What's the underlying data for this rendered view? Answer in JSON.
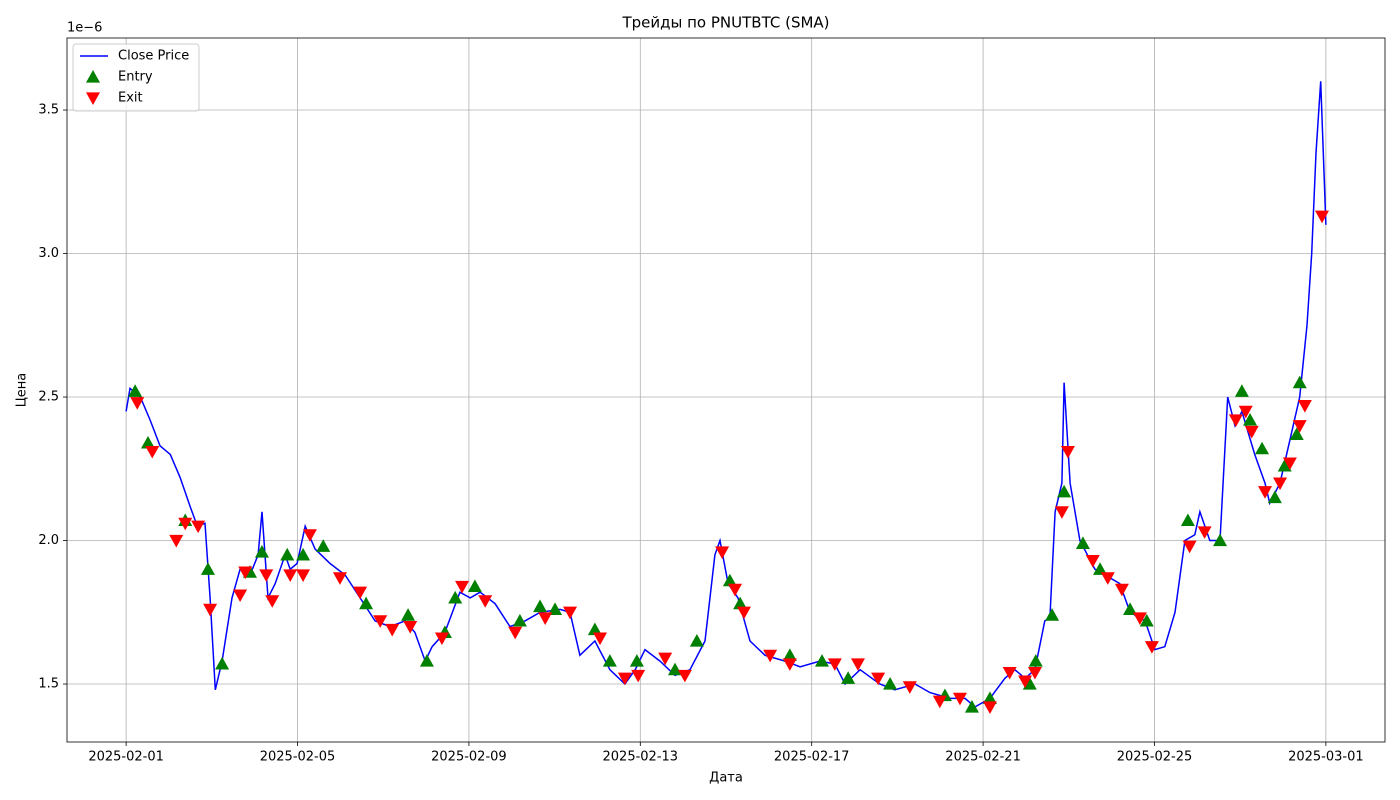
{
  "chart_data": {
    "type": "line",
    "title": "Трейды по PNUTBTC (SMA)",
    "xlabel": "Дата",
    "ylabel": "Цена",
    "y_offset_label": "1e−6",
    "grid": true,
    "legend": "upper left",
    "xlim": [
      -1.38,
      29.38
    ],
    "ylim": [
      1.298,
      3.751
    ],
    "xticks": [
      {
        "value": 0,
        "label": "2025-02-01"
      },
      {
        "value": 4,
        "label": "2025-02-05"
      },
      {
        "value": 8,
        "label": "2025-02-09"
      },
      {
        "value": 12,
        "label": "2025-02-13"
      },
      {
        "value": 16,
        "label": "2025-02-17"
      },
      {
        "value": 20,
        "label": "2025-02-21"
      },
      {
        "value": 24,
        "label": "2025-02-25"
      },
      {
        "value": 28,
        "label": "2025-03-01"
      }
    ],
    "yticks": [
      1.5,
      {
        "value": 2,
        "label": "2.0"
      },
      2.5,
      {
        "value": 3,
        "label": "3.0"
      },
      3.5
    ],
    "series": [
      {
        "name": "Close Price",
        "type": "line",
        "color": "#0000ff",
        "x": [
          0,
          0.09,
          0.33,
          0.56,
          0.79,
          1.03,
          1.26,
          1.49,
          1.66,
          1.84,
          1.96,
          2.08,
          2.24,
          2.47,
          2.66,
          2.89,
          3.08,
          3.17,
          3.31,
          3.48,
          3.71,
          3.83,
          3.99,
          4.18,
          4.41,
          4.76,
          5.11,
          5.46,
          5.81,
          6.16,
          6.51,
          6.74,
          6.98,
          7.14,
          7.44,
          7.79,
          8.03,
          8.26,
          8.61,
          8.96,
          9.31,
          9.66,
          10.13,
          10.36,
          10.59,
          10.94,
          11.29,
          11.64,
          11.88,
          12.11,
          12.46,
          12.81,
          13.16,
          13.51,
          13.74,
          13.86,
          14.05,
          14.28,
          14.56,
          14.91,
          15.38,
          15.73,
          16.19,
          16.54,
          16.78,
          17.13,
          17.59,
          17.94,
          18.41,
          18.76,
          19.23,
          19.58,
          19.81,
          20.16,
          20.51,
          20.74,
          20.98,
          21.21,
          21.44,
          21.56,
          21.68,
          21.84,
          21.89,
          22.03,
          22.26,
          22.61,
          22.96,
          23.19,
          23.43,
          23.78,
          24.01,
          24.24,
          24.48,
          24.71,
          24.94,
          25.06,
          25.29,
          25.53,
          25.71,
          25.88,
          26.04,
          26.34,
          26.58,
          26.69,
          26.93,
          27.16,
          27.39,
          27.56,
          27.67,
          27.77,
          27.88,
          28.0
        ],
        "values": [
          2.45,
          2.53,
          2.5,
          2.42,
          2.33,
          2.3,
          2.22,
          2.12,
          2.05,
          2.06,
          1.8,
          1.48,
          1.58,
          1.8,
          1.9,
          1.88,
          1.95,
          2.1,
          1.8,
          1.85,
          1.95,
          1.9,
          1.92,
          2.05,
          1.97,
          1.92,
          1.88,
          1.8,
          1.72,
          1.7,
          1.72,
          1.68,
          1.58,
          1.63,
          1.68,
          1.82,
          1.8,
          1.82,
          1.78,
          1.7,
          1.72,
          1.75,
          1.76,
          1.75,
          1.6,
          1.65,
          1.55,
          1.5,
          1.55,
          1.62,
          1.58,
          1.53,
          1.55,
          1.65,
          1.95,
          2.0,
          1.85,
          1.8,
          1.65,
          1.6,
          1.58,
          1.56,
          1.58,
          1.57,
          1.5,
          1.55,
          1.5,
          1.48,
          1.5,
          1.47,
          1.45,
          1.45,
          1.42,
          1.45,
          1.52,
          1.55,
          1.52,
          1.55,
          1.72,
          1.73,
          2.1,
          2.2,
          2.55,
          2.2,
          2.0,
          1.9,
          1.87,
          1.85,
          1.75,
          1.72,
          1.62,
          1.63,
          1.75,
          2.0,
          2.02,
          2.1,
          2.0,
          2.0,
          2.5,
          2.4,
          2.45,
          2.3,
          2.2,
          2.13,
          2.2,
          2.35,
          2.5,
          2.75,
          3.0,
          3.35,
          3.6,
          3.1
        ]
      },
      {
        "name": "Entry",
        "type": "scatter",
        "marker": "triangle-up",
        "color": "#008000",
        "x": [
          0.21,
          0.51,
          1.38,
          1.91,
          2.24,
          2.89,
          3.17,
          3.76,
          4.13,
          4.6,
          5.6,
          6.58,
          7.02,
          7.44,
          7.68,
          8.14,
          9.19,
          9.66,
          10.01,
          10.94,
          11.29,
          11.92,
          12.81,
          13.32,
          14.09,
          14.33,
          15.49,
          16.24,
          16.85,
          17.83,
          19.11,
          19.74,
          20.16,
          21.09,
          21.23,
          21.61,
          21.89,
          22.33,
          22.73,
          23.43,
          23.82,
          24.78,
          25.53,
          26.04,
          26.23,
          26.51,
          26.81,
          27.04,
          27.32,
          27.39
        ],
        "values": [
          2.52,
          2.34,
          2.07,
          1.9,
          1.57,
          1.89,
          1.96,
          1.95,
          1.95,
          1.98,
          1.78,
          1.74,
          1.58,
          1.68,
          1.8,
          1.84,
          1.72,
          1.77,
          1.76,
          1.69,
          1.58,
          1.58,
          1.55,
          1.65,
          1.86,
          1.78,
          1.6,
          1.58,
          1.52,
          1.5,
          1.46,
          1.42,
          1.45,
          1.5,
          1.58,
          1.74,
          2.17,
          1.99,
          1.9,
          1.76,
          1.72,
          2.07,
          2.0,
          2.52,
          2.42,
          2.32,
          2.15,
          2.26,
          2.37,
          2.55
        ]
      },
      {
        "name": "Exit",
        "type": "scatter",
        "marker": "triangle-down",
        "color": "#ff0000",
        "x": [
          0.26,
          0.61,
          1.17,
          1.38,
          1.68,
          1.96,
          2.66,
          2.78,
          3.27,
          3.41,
          3.83,
          4.13,
          4.29,
          4.99,
          5.46,
          5.93,
          6.21,
          6.63,
          7.37,
          7.84,
          8.38,
          9.08,
          9.78,
          10.36,
          11.06,
          11.64,
          11.95,
          12.58,
          13.04,
          13.91,
          14.21,
          14.42,
          15.03,
          15.49,
          16.54,
          17.08,
          17.55,
          18.29,
          18.99,
          19.46,
          20.16,
          20.62,
          20.98,
          21.21,
          21.84,
          21.98,
          22.56,
          22.91,
          23.24,
          23.66,
          23.94,
          24.82,
          25.17,
          25.9,
          26.13,
          26.27,
          26.58,
          26.93,
          27.16,
          27.39,
          27.51,
          27.91
        ],
        "values": [
          2.48,
          2.31,
          2.0,
          2.06,
          2.05,
          1.76,
          1.81,
          1.89,
          1.88,
          1.79,
          1.88,
          1.88,
          2.02,
          1.87,
          1.82,
          1.72,
          1.69,
          1.7,
          1.66,
          1.84,
          1.79,
          1.68,
          1.73,
          1.75,
          1.66,
          1.52,
          1.53,
          1.59,
          1.53,
          1.96,
          1.83,
          1.75,
          1.6,
          1.57,
          1.57,
          1.57,
          1.52,
          1.49,
          1.44,
          1.45,
          1.42,
          1.54,
          1.51,
          1.54,
          2.1,
          2.31,
          1.93,
          1.87,
          1.83,
          1.73,
          1.63,
          1.98,
          2.03,
          2.42,
          2.45,
          2.38,
          2.17,
          2.2,
          2.27,
          2.4,
          2.47,
          3.13
        ]
      }
    ]
  }
}
